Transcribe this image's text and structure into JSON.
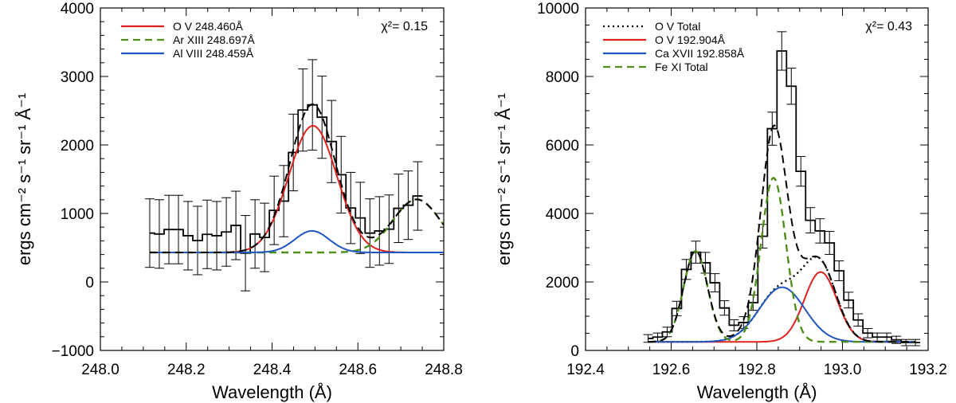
{
  "chart_data": [
    {
      "type": "line",
      "title": "",
      "xlabel": "Wavelength (Å)",
      "ylabel": "ergs cm⁻² s⁻¹ sr⁻¹ Å⁻¹",
      "xlim": [
        248.0,
        248.8
      ],
      "ylim": [
        -1000,
        4000
      ],
      "xticks": [
        "248.0",
        "248.2",
        "248.4",
        "248.6",
        "248.8"
      ],
      "yticks": [
        "−1000",
        "0",
        "1000",
        "2000",
        "3000",
        "4000"
      ],
      "annotation": "χ²= 0.15",
      "legend_position": "top-left",
      "data": {
        "x_start": 248.115,
        "bin_width": 0.0223,
        "values": [
          713,
          700,
          765,
          765,
          675,
          605,
          695,
          675,
          730,
          825,
          420,
          700,
          650,
          1045,
          1180,
          1890,
          2510,
          2585,
          2405,
          2050,
          1565,
          1080,
          935,
          713,
          745,
          770,
          1075,
          1120,
          1255
        ],
        "errors": [
          500,
          500,
          500,
          500,
          500,
          500,
          500,
          500,
          500,
          500,
          550,
          500,
          500,
          500,
          520,
          560,
          600,
          660,
          600,
          600,
          560,
          520,
          520,
          500,
          500,
          500,
          500,
          500,
          500
        ]
      },
      "background": 430,
      "series": [
        {
          "name": "O V 248.460Å",
          "color": "#e0201e",
          "style": "solid",
          "center": 248.495,
          "amplitude": 1850,
          "sigma": 0.056
        },
        {
          "name": "Ar XIII 248.697Å",
          "color": "#4f8f1a",
          "style": "dashed",
          "center": 248.737,
          "amplitude": 775,
          "sigma": 0.055
        },
        {
          "name": "Al VIII 248.459Å",
          "color": "#1f55c0",
          "style": "solid",
          "center": 248.493,
          "amplitude": 315,
          "sigma": 0.04
        }
      ]
    },
    {
      "type": "line",
      "title": "",
      "xlabel": "Wavelength (Å)",
      "ylabel": "ergs cm⁻² s⁻¹ sr⁻¹ Å⁻¹",
      "xlim": [
        192.4,
        193.2
      ],
      "ylim": [
        0,
        10000
      ],
      "xticks": [
        "192.4",
        "192.6",
        "192.8",
        "193.0",
        "193.2"
      ],
      "yticks": [
        "0",
        "2000",
        "4000",
        "6000",
        "8000",
        "10000"
      ],
      "annotation": "χ²= 0.43",
      "legend_position": "top-left",
      "data": {
        "x_start": 192.546,
        "bin_width": 0.0223,
        "values": [
          350,
          390,
          540,
          1225,
          2365,
          2870,
          2560,
          1975,
          1240,
          735,
          815,
          1395,
          3335,
          6475,
          8745,
          7715,
          5230,
          3800,
          3490,
          3140,
          2325,
          1470,
          890,
          505,
          390,
          390,
          310,
          230,
          230
        ],
        "error_scale_sqrt": 6
      },
      "background": 250,
      "fe_xi_components": [
        {
          "center": 192.657,
          "amplitude": 2650,
          "sigma": 0.028
        },
        {
          "center": 192.839,
          "amplitude": 4790,
          "sigma": 0.029
        }
      ],
      "series": [
        {
          "name": "O V Total",
          "color": "#000000",
          "style": "dotted"
        },
        {
          "name": "O V 192.904Å",
          "color": "#e0201e",
          "style": "solid",
          "center": 192.949,
          "amplitude": 2040,
          "sigma": 0.038
        },
        {
          "name": "Ca XVII 192.858Å",
          "color": "#1f55c0",
          "style": "solid",
          "center": 192.859,
          "amplitude": 1595,
          "sigma": 0.053
        },
        {
          "name": "Fe XI Total",
          "color": "#4f8f1a",
          "style": "dashed"
        }
      ]
    }
  ]
}
